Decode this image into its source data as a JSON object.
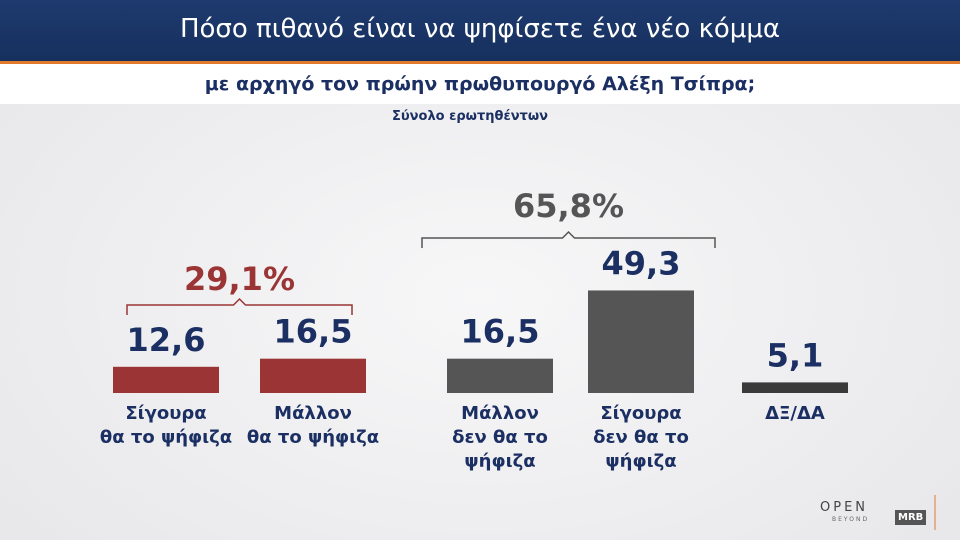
{
  "chart_data": {
    "type": "bar",
    "title": "Πόσο πιθανό είναι να ψηφίσετε ένα νέο κόμμα",
    "subtitle": "με αρχηγό τον πρώην πρωθυπουργό Αλέξη Τσίπρα;",
    "note": "Σύνολο ερωτηθέντων",
    "categories": [
      "Σίγουρα\nθα το ψήφιζα",
      "Μάλλον\nθα το ψήφιζα",
      "Μάλλον\nδεν θα το\nψήφιζα",
      "Σίγουρα\nδεν θα το\nψήφιζα",
      "ΔΞ/ΔΑ"
    ],
    "values": [
      12.6,
      16.5,
      16.5,
      49.3,
      5.1
    ],
    "value_labels": [
      "12,6",
      "16,5",
      "16,5",
      "49,3",
      "5,1"
    ],
    "colors": [
      "#9b3535",
      "#9b3535",
      "#555555",
      "#555555",
      "#3a3a3a"
    ],
    "groups": [
      {
        "value": 29.1,
        "label": "29,1%",
        "color": "#9b3535"
      },
      {
        "value": 65.8,
        "label": "65,8%",
        "color": "#555555"
      }
    ]
  },
  "logos": [
    "OPEN",
    "BEYOND",
    "MRB"
  ]
}
